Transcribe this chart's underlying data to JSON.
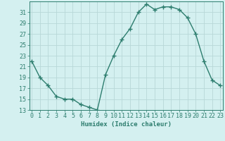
{
  "xlabel": "Humidex (Indice chaleur)",
  "ylabel": "",
  "x": [
    0,
    1,
    2,
    3,
    4,
    5,
    6,
    7,
    8,
    9,
    10,
    11,
    12,
    13,
    14,
    15,
    16,
    17,
    18,
    19,
    20,
    21,
    22,
    23
  ],
  "y": [
    22,
    19,
    17.5,
    15.5,
    15,
    15,
    14,
    13.5,
    13,
    19.5,
    23,
    26,
    28,
    31,
    32.5,
    31.5,
    32,
    32,
    31.5,
    30,
    27,
    22,
    18.5,
    17.5
  ],
  "line_color": "#2d7d6e",
  "marker": "+",
  "marker_size": 4,
  "marker_lw": 1.0,
  "bg_color": "#d4f0f0",
  "grid_color": "#b8d8d8",
  "tick_color": "#2d7d6e",
  "label_color": "#2d7d6e",
  "spine_color": "#2d7d6e",
  "ylim": [
    13,
    33
  ],
  "xlim": [
    -0.3,
    23.3
  ],
  "yticks": [
    13,
    15,
    17,
    19,
    21,
    23,
    25,
    27,
    29,
    31
  ],
  "xticks": [
    0,
    1,
    2,
    3,
    4,
    5,
    6,
    7,
    8,
    9,
    10,
    11,
    12,
    13,
    14,
    15,
    16,
    17,
    18,
    19,
    20,
    21,
    22,
    23
  ],
  "xlabel_fontsize": 6.5,
  "tick_fontsize": 6.0,
  "line_width": 1.0
}
